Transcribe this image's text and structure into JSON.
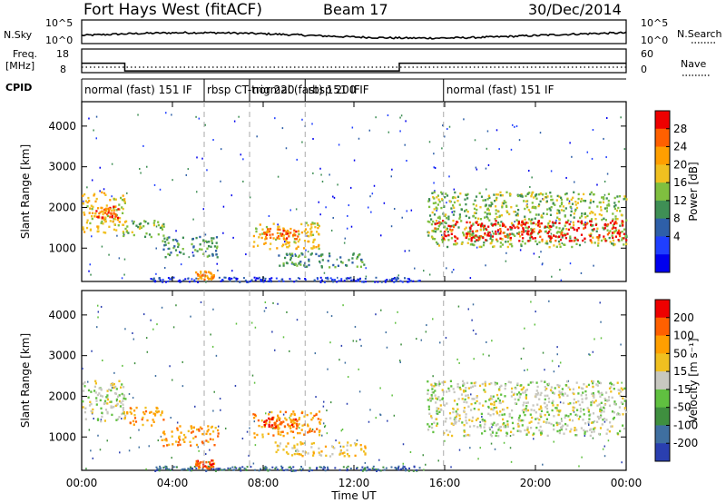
{
  "header": {
    "title": "Fort Hays West (fitACF)",
    "beam": "Beam 17",
    "date": "30/Dec/2014"
  },
  "noise_panel": {
    "left_label": "N.Sky",
    "left_ticks": [
      "10^5",
      "10^0"
    ],
    "right_label": "N.Search",
    "right_ticks": [
      "10^5",
      "10^0"
    ]
  },
  "freq_panel": {
    "left_label_1": "Freq.",
    "left_label_2": "[MHz]",
    "left_ticks": [
      "18",
      "8"
    ],
    "right_label": "Nave",
    "right_ticks": [
      "60",
      "0"
    ],
    "freq_steps_mhz": [
      [
        0.0,
        12.0
      ],
      [
        1.9,
        8.7
      ],
      [
        14.0,
        12.0
      ],
      [
        24.0,
        12.0
      ]
    ]
  },
  "cpid": {
    "label": "CPID",
    "segments": [
      {
        "start": 0.0,
        "label": "normal (fast) 151 IF"
      },
      {
        "start": 5.4,
        "label": "rbsp CT-trig 220"
      },
      {
        "start": 7.4,
        "label": "normal (fast) 151 IF"
      },
      {
        "start": 9.85,
        "label": "rbsp 200 IF"
      },
      {
        "start": 15.95,
        "label": "normal (fast) 151 IF"
      }
    ]
  },
  "power_panel": {
    "colorbar_title": "Power [dB]",
    "colorbar_ticks": [
      "28",
      "24",
      "20",
      "16",
      "12",
      "8",
      "4"
    ],
    "colors": [
      "#0000ee",
      "#1f3fff",
      "#2e5fa8",
      "#3f8f55",
      "#7fbf3f",
      "#f0c020",
      "#ff9f00",
      "#ff6000",
      "#ee0000"
    ]
  },
  "velocity_panel": {
    "colorbar_title": "Velocity [m s⁻¹]",
    "colorbar_ticks": [
      "200",
      "100",
      "50",
      "15",
      "-15",
      "-50",
      "-100",
      "-200"
    ],
    "colors": [
      "#2a3fb0",
      "#3f6fa0",
      "#3f8f3f",
      "#60c040",
      "#c8c8c0",
      "#f0c020",
      "#ff9f00",
      "#ff6000",
      "#ee0000"
    ]
  },
  "chart_data": {
    "type": "heatmap",
    "x_label": "Time UT",
    "x_ticks": [
      "00:00",
      "04:00",
      "08:00",
      "12:00",
      "16:00",
      "20:00",
      "00:00"
    ],
    "x_range_hours": [
      0,
      24
    ],
    "y_label": "Slant Range [km]",
    "y_ticks": [
      "4000",
      "3000",
      "2000",
      "1000"
    ],
    "y_range_km": [
      180,
      4600
    ],
    "power_regions": [
      {
        "t0": 0.0,
        "t1": 1.9,
        "r0": 1400,
        "r1": 2400,
        "level": 5
      },
      {
        "t0": 0.6,
        "t1": 1.6,
        "r0": 1750,
        "r1": 2050,
        "level": 7
      },
      {
        "t0": 1.8,
        "t1": 3.6,
        "r0": 1300,
        "r1": 1700,
        "level": 4
      },
      {
        "t0": 3.5,
        "t1": 6.0,
        "r0": 800,
        "r1": 1300,
        "level": 3
      },
      {
        "t0": 5.0,
        "t1": 5.8,
        "r0": 250,
        "r1": 450,
        "level": 6
      },
      {
        "t0": 7.5,
        "t1": 10.5,
        "r0": 1000,
        "r1": 1650,
        "level": 5
      },
      {
        "t0": 8.0,
        "t1": 9.5,
        "r0": 1250,
        "r1": 1500,
        "level": 7
      },
      {
        "t0": 8.5,
        "t1": 12.5,
        "r0": 550,
        "r1": 900,
        "level": 3
      },
      {
        "t0": 15.2,
        "t1": 24.0,
        "r0": 1050,
        "r1": 2400,
        "level": 4
      },
      {
        "t0": 15.5,
        "t1": 24.0,
        "r0": 1200,
        "r1": 1700,
        "level": 8
      }
    ],
    "velocity_regions": [
      {
        "t0": 0.0,
        "t1": 1.9,
        "r0": 1400,
        "r1": 2400,
        "level": 4
      },
      {
        "t0": 1.8,
        "t1": 3.6,
        "r0": 1300,
        "r1": 1750,
        "level": 6
      },
      {
        "t0": 3.5,
        "t1": 6.0,
        "r0": 800,
        "r1": 1300,
        "level": 6
      },
      {
        "t0": 5.0,
        "t1": 5.8,
        "r0": 250,
        "r1": 450,
        "level": 7
      },
      {
        "t0": 7.5,
        "t1": 10.5,
        "r0": 1000,
        "r1": 1650,
        "level": 6
      },
      {
        "t0": 8.0,
        "t1": 9.5,
        "r0": 1250,
        "r1": 1500,
        "level": 7
      },
      {
        "t0": 8.5,
        "t1": 12.5,
        "r0": 550,
        "r1": 900,
        "level": 5
      },
      {
        "t0": 15.2,
        "t1": 24.0,
        "r0": 1050,
        "r1": 2400,
        "level": 4
      }
    ]
  }
}
